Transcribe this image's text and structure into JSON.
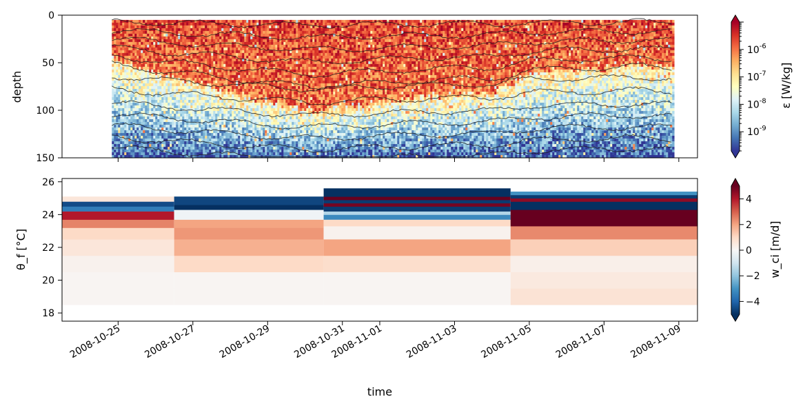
{
  "chart_data": [
    {
      "type": "heatmap",
      "title": "",
      "xlabel": "",
      "ylabel": "depth",
      "ylim": [
        150,
        0
      ],
      "yticks": [
        "0",
        "50",
        "100",
        "150"
      ],
      "y_tick_values": [
        0,
        50,
        100,
        150
      ],
      "x_start": "2008-10-23 12:00",
      "x_end": "2008-11-09 12:00",
      "x_data_start": "2008-10-24 20:00",
      "x_data_end": "2008-11-08 20:00",
      "depth_min": 5,
      "depth_max": 150,
      "colorbar": {
        "label": "ε [W/kg]",
        "scale": "log",
        "range": [
          2e-10,
          1e-05
        ],
        "tick_exponents": [
          "-9",
          "-8",
          "-7",
          "-6"
        ],
        "tick_values": [
          1e-09,
          1e-08,
          1e-07,
          1e-06
        ],
        "tick_base": "10",
        "colormap": "RdYlBu_r",
        "extend": "both"
      },
      "mixed_layer_depth": [
        {
          "x": "2008-10-24 20:00",
          "y": 45
        },
        {
          "x": "2008-10-26 00:00",
          "y": 60
        },
        {
          "x": "2008-10-27 00:00",
          "y": 70
        },
        {
          "x": "2008-10-28 00:00",
          "y": 80
        },
        {
          "x": "2008-10-29 12:00",
          "y": 95
        },
        {
          "x": "2008-10-30 06:00",
          "y": 100
        },
        {
          "x": "2008-10-31 00:00",
          "y": 95
        },
        {
          "x": "2008-11-01 00:00",
          "y": 90
        },
        {
          "x": "2008-11-02 00:00",
          "y": 85
        },
        {
          "x": "2008-11-03 00:00",
          "y": 82
        },
        {
          "x": "2008-11-04 00:00",
          "y": 80
        },
        {
          "x": "2008-11-05 00:00",
          "y": 60
        },
        {
          "x": "2008-11-06 00:00",
          "y": 55
        },
        {
          "x": "2008-11-07 00:00",
          "y": 55
        },
        {
          "x": "2008-11-08 00:00",
          "y": 50
        },
        {
          "x": "2008-11-08 20:00",
          "y": 55
        }
      ]
    },
    {
      "type": "heatmap",
      "title": "",
      "xlabel": "time",
      "ylabel": "θ_f [°C]",
      "ylim": [
        17.5,
        26.2
      ],
      "yticks": [
        "18",
        "20",
        "22",
        "24",
        "26"
      ],
      "y_tick_values": [
        18,
        20,
        22,
        24,
        26
      ],
      "x_start": "2008-10-23 12:00",
      "x_end": "2008-11-09 12:00",
      "xticks": [
        "2008-10-25",
        "2008-10-27",
        "2008-10-29",
        "2008-10-31",
        "2008-11-01",
        "2008-11-03",
        "2008-11-05",
        "2008-11-07",
        "2008-11-09"
      ],
      "xtick_dates": [
        "2008-10-25 00:00",
        "2008-10-27 00:00",
        "2008-10-29 00:00",
        "2008-10-31 00:00",
        "2008-11-01 00:00",
        "2008-11-03 00:00",
        "2008-11-05 00:00",
        "2008-11-07 00:00",
        "2008-11-09 00:00"
      ],
      "colorbar": {
        "label": "w_ci [m/d]",
        "range": [
          -5,
          5
        ],
        "ticks": [
          "4",
          "2",
          "0",
          "−2",
          "−4"
        ],
        "tick_values": [
          4,
          2,
          0,
          -2,
          -4
        ],
        "colormap": "RdBu_r",
        "extend": "both"
      },
      "periods": [
        {
          "start": "2008-10-23 12:00",
          "end": "2008-10-26 12:00",
          "bins": [
            {
              "t0": 18.5,
              "t1": 19.5,
              "v": 0.1
            },
            {
              "t0": 19.5,
              "t1": 20.5,
              "v": 0.1
            },
            {
              "t0": 20.5,
              "t1": 21.5,
              "v": 0.2
            },
            {
              "t0": 21.5,
              "t1": 22.5,
              "v": 0.6
            },
            {
              "t0": 22.5,
              "t1": 23.2,
              "v": 1.0
            },
            {
              "t0": 23.2,
              "t1": 23.7,
              "v": 2.5
            },
            {
              "t0": 23.7,
              "t1": 24.2,
              "v": 4.0
            },
            {
              "t0": 24.2,
              "t1": 24.5,
              "v": -3.5
            },
            {
              "t0": 24.5,
              "t1": 24.8,
              "v": -4.5
            },
            {
              "t0": 24.8,
              "t1": 25.1,
              "v": 0.6
            }
          ]
        },
        {
          "start": "2008-10-26 12:00",
          "end": "2008-10-30 12:00",
          "bins": [
            {
              "t0": 18.5,
              "t1": 19.5,
              "v": 0.1
            },
            {
              "t0": 19.5,
              "t1": 20.5,
              "v": 0.1
            },
            {
              "t0": 20.5,
              "t1": 21.5,
              "v": 1.0
            },
            {
              "t0": 21.5,
              "t1": 22.5,
              "v": 1.8
            },
            {
              "t0": 22.5,
              "t1": 23.2,
              "v": 2.2
            },
            {
              "t0": 23.2,
              "t1": 23.7,
              "v": 2.0
            },
            {
              "t0": 23.7,
              "t1": 24.3,
              "v": -0.2
            },
            {
              "t0": 24.3,
              "t1": 24.6,
              "v": -5.0
            },
            {
              "t0": 24.6,
              "t1": 25.1,
              "v": -4.6
            }
          ]
        },
        {
          "start": "2008-10-30 12:00",
          "end": "2008-11-04 12:00",
          "bins": [
            {
              "t0": 18.5,
              "t1": 19.5,
              "v": 0.1
            },
            {
              "t0": 19.5,
              "t1": 20.5,
              "v": 0.1
            },
            {
              "t0": 20.5,
              "t1": 21.5,
              "v": 0.9
            },
            {
              "t0": 21.5,
              "t1": 22.5,
              "v": 2.0
            },
            {
              "t0": 22.5,
              "t1": 23.3,
              "v": 0.2
            },
            {
              "t0": 23.3,
              "t1": 23.7,
              "v": 1.0
            },
            {
              "t0": 23.7,
              "t1": 24.0,
              "v": -3.2
            },
            {
              "t0": 24.0,
              "t1": 24.2,
              "v": -1.5
            },
            {
              "t0": 24.2,
              "t1": 24.5,
              "v": -4.8
            },
            {
              "t0": 24.5,
              "t1": 24.7,
              "v": 4.8
            },
            {
              "t0": 24.7,
              "t1": 24.9,
              "v": -4.8
            },
            {
              "t0": 24.9,
              "t1": 25.1,
              "v": 5.0
            },
            {
              "t0": 25.1,
              "t1": 25.6,
              "v": -5.0
            }
          ]
        },
        {
          "start": "2008-11-04 12:00",
          "end": "2008-11-09 12:00",
          "bins": [
            {
              "t0": 18.5,
              "t1": 19.5,
              "v": 0.7
            },
            {
              "t0": 19.5,
              "t1": 20.5,
              "v": 0.5
            },
            {
              "t0": 20.5,
              "t1": 21.5,
              "v": 0.3
            },
            {
              "t0": 21.5,
              "t1": 22.5,
              "v": 1.2
            },
            {
              "t0": 22.5,
              "t1": 23.3,
              "v": 2.4
            },
            {
              "t0": 23.3,
              "t1": 24.3,
              "v": 5.0
            },
            {
              "t0": 24.3,
              "t1": 24.8,
              "v": -5.0
            },
            {
              "t0": 24.8,
              "t1": 25.0,
              "v": 4.5
            },
            {
              "t0": 25.0,
              "t1": 25.2,
              "v": -4.8
            },
            {
              "t0": 25.2,
              "t1": 25.4,
              "v": -3.0
            }
          ]
        }
      ]
    }
  ]
}
